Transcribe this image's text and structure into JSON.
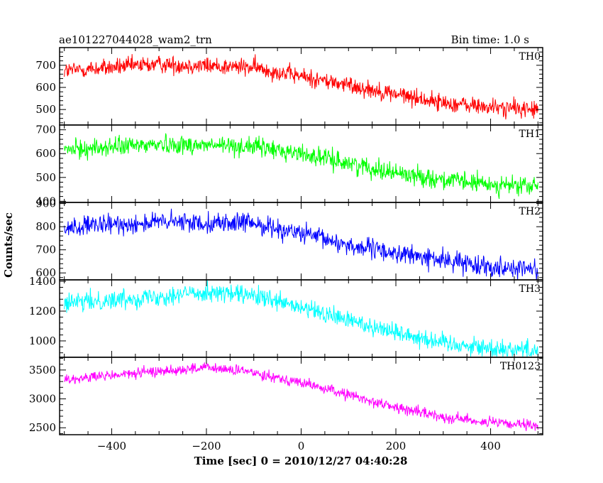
{
  "chart_data": {
    "type": "line",
    "title": "ae101227044028_wam2_trn",
    "subtitle": "Bin time: 1.0 s",
    "xlabel": "Time [sec] 0 = 2010/12/27 04:40:28",
    "ylabel": "Counts/sec",
    "xlim": [
      -510,
      510
    ],
    "x_ticks": [
      -400,
      -200,
      0,
      200,
      400
    ],
    "x_tick_labels": [
      "−400",
      "−200",
      "0",
      "200",
      "400"
    ],
    "x_range_data": [
      -500,
      500
    ],
    "bin_time_s": 1.0,
    "grid": false,
    "series": [
      {
        "name": "TH0",
        "color": "#ff0000",
        "ylim": [
          430,
          780
        ],
        "y_ticks": [
          500,
          600,
          700
        ],
        "y_tick_labels": [
          "500",
          "600",
          "700"
        ],
        "trend": {
          "x": [
            -500,
            -300,
            -100,
            0,
            100,
            200,
            300,
            400,
            500
          ],
          "y": [
            675,
            705,
            690,
            650,
            610,
            570,
            530,
            510,
            500
          ]
        },
        "noise": 28
      },
      {
        "name": "TH1",
        "color": "#00ff00",
        "ylim": [
          395,
          720
        ],
        "y_ticks": [
          400,
          500,
          600,
          700
        ],
        "y_tick_labels": [
          "400",
          "500",
          "600",
          "700"
        ],
        "trend": {
          "x": [
            -500,
            -300,
            -100,
            0,
            100,
            200,
            300,
            400,
            500
          ],
          "y": [
            615,
            640,
            630,
            600,
            560,
            520,
            490,
            470,
            460
          ]
        },
        "noise": 28
      },
      {
        "name": "TH2",
        "color": "#0000ff",
        "ylim": [
          570,
          905
        ],
        "y_ticks": [
          600,
          700,
          800,
          900
        ],
        "y_tick_labels": [
          "600",
          "700",
          "800",
          "900"
        ],
        "trend": {
          "x": [
            -500,
            -300,
            -100,
            0,
            100,
            200,
            300,
            400,
            500
          ],
          "y": [
            795,
            820,
            815,
            770,
            720,
            685,
            655,
            630,
            615
          ]
        },
        "noise": 30
      },
      {
        "name": "TH3",
        "color": "#00ffff",
        "ylim": [
          890,
          1410
        ],
        "y_ticks": [
          1000,
          1200,
          1400
        ],
        "y_tick_labels": [
          "1000",
          "1200",
          "1400"
        ],
        "trend": {
          "x": [
            -500,
            -300,
            -200,
            -100,
            0,
            100,
            200,
            300,
            400,
            500
          ],
          "y": [
            1250,
            1300,
            1330,
            1300,
            1220,
            1140,
            1060,
            990,
            950,
            940
          ]
        },
        "noise": 45
      },
      {
        "name": "TH0123",
        "color": "#ff00ff",
        "ylim": [
          2380,
          3720
        ],
        "y_ticks": [
          2500,
          3000,
          3500
        ],
        "y_tick_labels": [
          "2500",
          "3000",
          "3500"
        ],
        "trend": {
          "x": [
            -500,
            -300,
            -200,
            -100,
            0,
            100,
            200,
            300,
            400,
            500
          ],
          "y": [
            3330,
            3480,
            3540,
            3460,
            3280,
            3070,
            2850,
            2690,
            2590,
            2520
          ]
        },
        "noise": 65
      }
    ]
  }
}
